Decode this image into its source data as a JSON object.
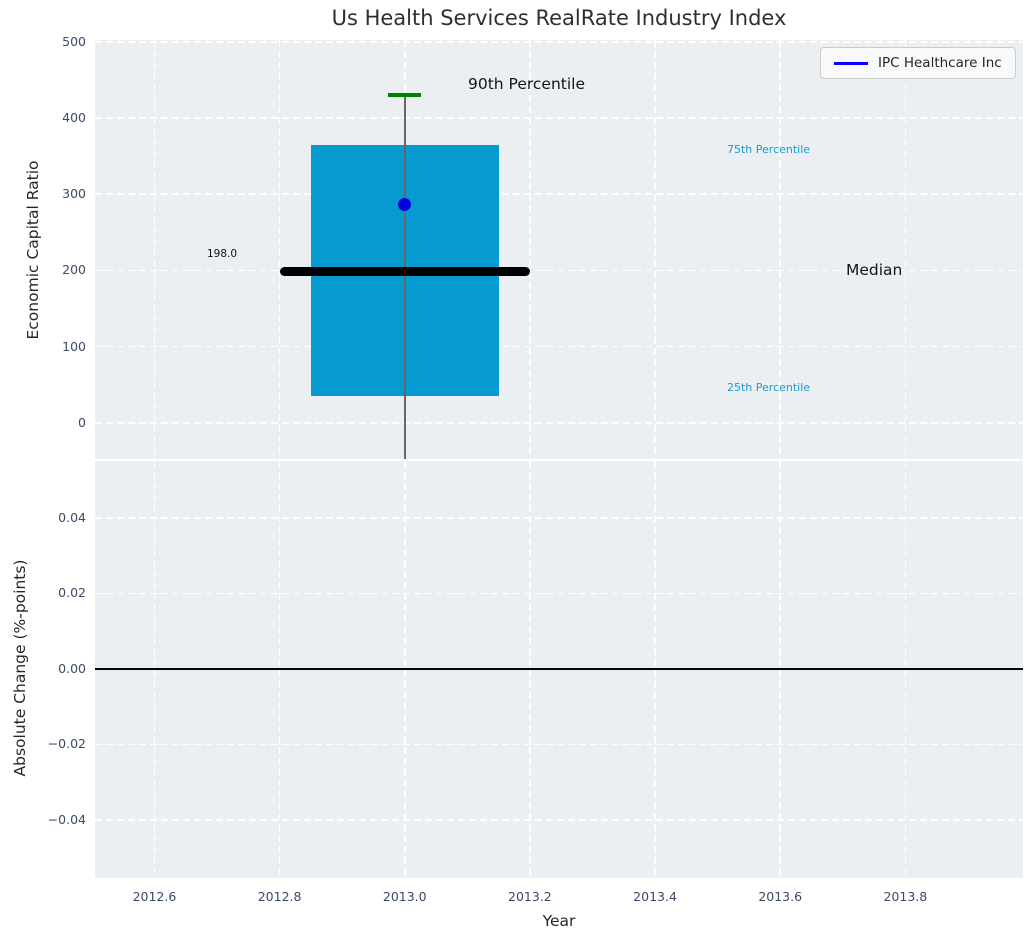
{
  "legend": {
    "label": "IPC Healthcare Inc",
    "line_color": "#0000ff"
  },
  "annotations": {
    "p90": "90th Percentile",
    "p75": "75th Percentile",
    "median": "Median",
    "p25": "25th Percentile",
    "median_value": "198.0"
  },
  "chart_data": [
    {
      "type": "box",
      "title": "Us Health Services RealRate Industry Index",
      "ylabel": "Economic Capital Ratio",
      "yticks": [
        0,
        100,
        200,
        300,
        400,
        500
      ],
      "ytick_labels": [
        "0",
        "100",
        "200",
        "300",
        "400",
        "500"
      ],
      "ylim": [
        -47.5,
        502.5
      ],
      "xlim": [
        2012.505,
        2013.988
      ],
      "grid": true,
      "legend_position": "upper right",
      "series": {
        "box": {
          "x": 2013.0,
          "box_x_range": [
            2012.85,
            2013.15
          ],
          "p25": 35,
          "p75": 365,
          "median": 198.0,
          "median_x_range": [
            2012.8,
            2013.2
          ],
          "p90": 430,
          "p90_cap_x_range": [
            2012.974,
            2013.026
          ],
          "whisker_low_clipped_below_axis": true
        },
        "company_point": {
          "name": "IPC Healthcare Inc",
          "x": 2013.0,
          "y": 287
        }
      },
      "colors": {
        "box_fill": "#069ad0",
        "median_line": "#000000",
        "p90_cap": "#008000",
        "whisker": "#666666",
        "point": "#0000d8",
        "percentile_text": "#1c9bce",
        "axes_bg": "#eceff1",
        "grid": "#ffffff",
        "tick_text": "#3b4a68"
      }
    },
    {
      "type": "line",
      "ylabel": "Absolute Change (%-points)",
      "yticks": [
        0.04,
        0.02,
        0.0,
        -0.02,
        -0.04
      ],
      "ytick_labels": [
        "0.04",
        "0.02",
        "0.00",
        "−0.02",
        "−0.04"
      ],
      "ylim": [
        -0.0554,
        0.0551
      ],
      "xlabel": "Year",
      "xticks": [
        2012.6,
        2012.8,
        2013.0,
        2013.2,
        2013.4,
        2013.6,
        2013.8
      ],
      "xtick_labels": [
        "2012.6",
        "2012.8",
        "2013.0",
        "2013.2",
        "2013.4",
        "2013.6",
        "2013.8"
      ],
      "xlim": [
        2012.505,
        2013.988
      ],
      "zero_line": 0.0,
      "series": []
    }
  ]
}
